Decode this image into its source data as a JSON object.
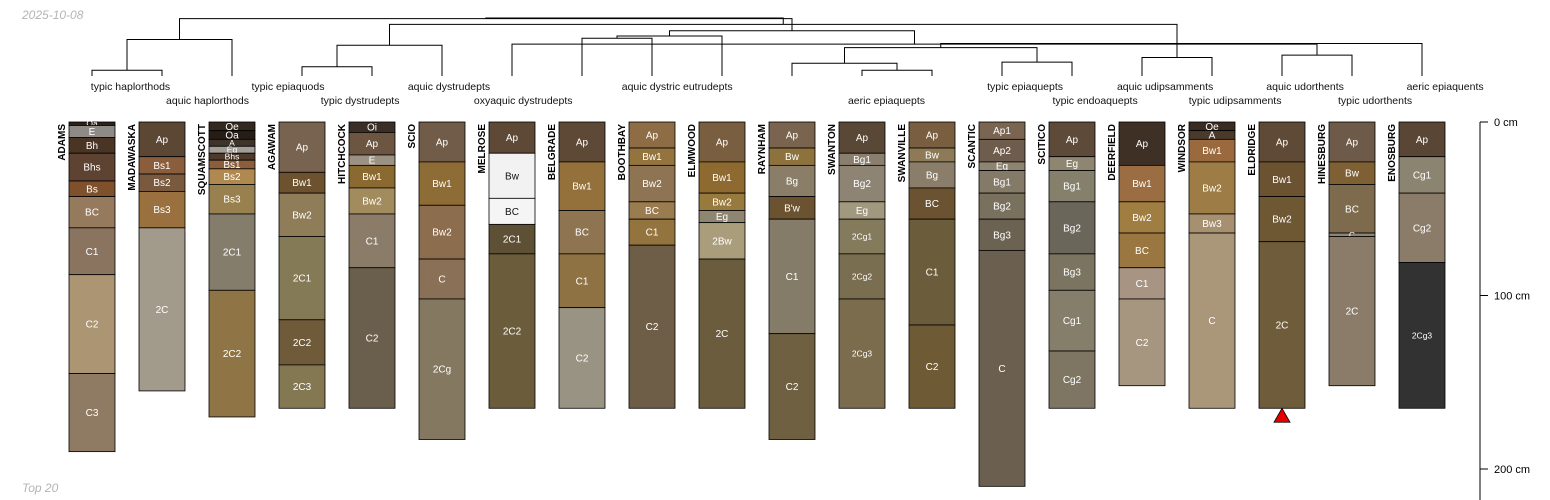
{
  "date": "2025-10-08",
  "footer": "Top 20",
  "depth_axis": {
    "unit": "cm",
    "max_depth": 210,
    "ticks": [
      {
        "value": 0,
        "label": "0 cm"
      },
      {
        "value": 100,
        "label": "100 cm"
      },
      {
        "value": 200,
        "label": "200 cm"
      }
    ]
  },
  "dendrogram": {
    "leaves": [
      "ADAMS",
      "MADAWASKA",
      "SQUAMSCOTT",
      "AGAWAM",
      "HITCHCOCK",
      "SCIO",
      "MELROSE",
      "BELGRADE",
      "BOOTHBAY",
      "ELMWOOD",
      "RAYNHAM",
      "SWANTON",
      "SWANVILLE",
      "SCANTIC",
      "SCITICO",
      "DEERFIELD",
      "WINDSOR",
      "ELDRIDGE",
      "HINESBURG",
      "ENOSBURG"
    ],
    "merges": [
      {
        "left": 0,
        "right": 1,
        "height": 0.1
      },
      {
        "left": 11,
        "right": 12,
        "height": 0.1
      },
      {
        "left": 3,
        "right": 4,
        "height": 0.16
      },
      {
        "left": 10,
        "right": 21,
        "height": 0.22
      },
      {
        "left": 13,
        "right": 14,
        "height": 0.24
      },
      {
        "left": 15,
        "right": 16,
        "height": 0.32
      },
      {
        "left": 17,
        "right": 18,
        "height": 0.36
      },
      {
        "left": 23,
        "right": 24,
        "height": 0.49
      },
      {
        "left": 22,
        "right": 5,
        "height": 0.53
      },
      {
        "left": 26,
        "right": 6,
        "height": 0.55
      },
      {
        "left": 27,
        "right": 19,
        "height": 0.56
      },
      {
        "left": 20,
        "right": 2,
        "height": 0.63
      },
      {
        "left": 7,
        "right": 8,
        "height": 0.65
      },
      {
        "left": 32,
        "right": 9,
        "height": 0.69
      },
      {
        "left": 29,
        "right": 33,
        "height": 0.78
      },
      {
        "left": 28,
        "right": 25,
        "height": 0.89
      },
      {
        "left": 31,
        "right": 34,
        "height": 0.99
      },
      {
        "left": 36,
        "right": 35,
        "height": 1.0
      }
    ]
  },
  "taxa": [
    {
      "text": "typic haplorthods",
      "row": 0,
      "pos": 0.55
    },
    {
      "text": "aquic haplorthods",
      "row": 1,
      "pos": 1.65
    },
    {
      "text": "typic epiaquods",
      "row": 0,
      "pos": 2.8
    },
    {
      "text": "typic dystrudepts",
      "row": 1,
      "pos": 3.83
    },
    {
      "text": "aquic dystrudepts",
      "row": 0,
      "pos": 5.1
    },
    {
      "text": "oxyaquic dystrudepts",
      "row": 1,
      "pos": 6.16
    },
    {
      "text": "aquic dystric eutrudepts",
      "row": 0,
      "pos": 8.36
    },
    {
      "text": "aeric epiaquepts",
      "row": 1,
      "pos": 11.35
    },
    {
      "text": "typic epiaquepts",
      "row": 0,
      "pos": 13.33
    },
    {
      "text": "typic endoaquepts",
      "row": 1,
      "pos": 14.33
    },
    {
      "text": "aquic udipsamments",
      "row": 0,
      "pos": 15.33
    },
    {
      "text": "typic udipsamments",
      "row": 1,
      "pos": 16.33
    },
    {
      "text": "aquic udorthents",
      "row": 0,
      "pos": 17.33
    },
    {
      "text": "typic udorthents",
      "row": 1,
      "pos": 18.33
    },
    {
      "text": "aeric epiaquents",
      "row": 0,
      "pos": 19.33
    }
  ],
  "profiles": [
    {
      "name": "ADAMS",
      "horizons": [
        {
          "name": "Oa",
          "top": 0,
          "bottom": 2,
          "color": "#2c2118"
        },
        {
          "name": "E",
          "top": 2,
          "bottom": 9,
          "color": "#8e8a86"
        },
        {
          "name": "Bh",
          "top": 9,
          "bottom": 18,
          "color": "#4a3424"
        },
        {
          "name": "Bhs",
          "top": 18,
          "bottom": 34,
          "color": "#5e4232"
        },
        {
          "name": "Bs",
          "top": 34,
          "bottom": 43,
          "color": "#7e502c"
        },
        {
          "name": "BC",
          "top": 43,
          "bottom": 61,
          "color": "#957a5e"
        },
        {
          "name": "C1",
          "top": 61,
          "bottom": 88,
          "color": "#8a7460"
        },
        {
          "name": "C2",
          "top": 88,
          "bottom": 145,
          "color": "#ab9573"
        },
        {
          "name": "C3",
          "top": 145,
          "bottom": 190,
          "color": "#8f7b64"
        }
      ]
    },
    {
      "name": "MADAWASKA",
      "horizons": [
        {
          "name": "Ap",
          "top": 0,
          "bottom": 20,
          "color": "#5c4634"
        },
        {
          "name": "Bs1",
          "top": 20,
          "bottom": 30,
          "color": "#8a5d3d"
        },
        {
          "name": "Bs2",
          "top": 30,
          "bottom": 40,
          "color": "#7a5a3f"
        },
        {
          "name": "Bs3",
          "top": 40,
          "bottom": 61,
          "color": "#9a713e"
        },
        {
          "name": "2C",
          "top": 61,
          "bottom": 155,
          "color": "#a29a8a"
        }
      ]
    },
    {
      "name": "SQUAMSCOTT",
      "horizons": [
        {
          "name": "Oe",
          "top": 0,
          "bottom": 5,
          "color": "#34291f"
        },
        {
          "name": "Oa",
          "top": 5,
          "bottom": 10,
          "color": "#261d16"
        },
        {
          "name": "A",
          "top": 10,
          "bottom": 14,
          "color": "#3e3429"
        },
        {
          "name": "Eg",
          "top": 14,
          "bottom": 18,
          "color": "#a39d97"
        },
        {
          "name": "Bhs",
          "top": 18,
          "bottom": 22,
          "color": "#4e3a2a"
        },
        {
          "name": "Bs1",
          "top": 22,
          "bottom": 27,
          "color": "#8b5f3c"
        },
        {
          "name": "Bs2",
          "top": 27,
          "bottom": 36,
          "color": "#b08950"
        },
        {
          "name": "Bs3",
          "top": 36,
          "bottom": 53,
          "color": "#98804f"
        },
        {
          "name": "2C1",
          "top": 53,
          "bottom": 97,
          "color": "#857d6c"
        },
        {
          "name": "2C2",
          "top": 97,
          "bottom": 170,
          "color": "#8f7446"
        }
      ]
    },
    {
      "name": "AGAWAM",
      "horizons": [
        {
          "name": "Ap",
          "top": 0,
          "bottom": 29,
          "color": "#776350"
        },
        {
          "name": "Bw1",
          "top": 29,
          "bottom": 41,
          "color": "#6d5230"
        },
        {
          "name": "Bw2",
          "top": 41,
          "bottom": 66,
          "color": "#8e7d58"
        },
        {
          "name": "2C1",
          "top": 66,
          "bottom": 114,
          "color": "#847a55"
        },
        {
          "name": "2C2",
          "top": 114,
          "bottom": 140,
          "color": "#6f5a3a"
        },
        {
          "name": "2C3",
          "top": 140,
          "bottom": 165,
          "color": "#847853"
        }
      ]
    },
    {
      "name": "HITCHCOCK",
      "horizons": [
        {
          "name": "Oi",
          "top": 0,
          "bottom": 6,
          "color": "#3a2e26"
        },
        {
          "name": "Ap",
          "top": 6,
          "bottom": 19,
          "color": "#6c5642"
        },
        {
          "name": "E",
          "top": 19,
          "bottom": 25,
          "color": "#9c9283"
        },
        {
          "name": "Bw1",
          "top": 25,
          "bottom": 38,
          "color": "#8a6a30"
        },
        {
          "name": "Bw2",
          "top": 38,
          "bottom": 53,
          "color": "#a28c5e"
        },
        {
          "name": "C1",
          "top": 53,
          "bottom": 84,
          "color": "#8a7c68"
        },
        {
          "name": "C2",
          "top": 84,
          "bottom": 165,
          "color": "#6a5f4c"
        }
      ]
    },
    {
      "name": "SCIO",
      "horizons": [
        {
          "name": "Ap",
          "top": 0,
          "bottom": 23,
          "color": "#715c4a"
        },
        {
          "name": "Bw1",
          "top": 23,
          "bottom": 48,
          "color": "#8e6c35"
        },
        {
          "name": "Bw2",
          "top": 48,
          "bottom": 79,
          "color": "#8c6e4e"
        },
        {
          "name": "C",
          "top": 79,
          "bottom": 102,
          "color": "#8a7056"
        },
        {
          "name": "2Cg",
          "top": 102,
          "bottom": 183,
          "color": "#847860"
        }
      ]
    },
    {
      "name": "MELROSE",
      "horizons": [
        {
          "name": "Ap",
          "top": 0,
          "bottom": 18,
          "color": "#5e4836"
        },
        {
          "name": "Bw",
          "top": 18,
          "bottom": 44,
          "color": "#f2f2f2"
        },
        {
          "name": "BC",
          "top": 44,
          "bottom": 59,
          "color": "#f5f5f5"
        },
        {
          "name": "2C1",
          "top": 59,
          "bottom": 76,
          "color": "#5e5034"
        },
        {
          "name": "2C2",
          "top": 76,
          "bottom": 165,
          "color": "#6b5c3c"
        }
      ]
    },
    {
      "name": "BELGRADE",
      "horizons": [
        {
          "name": "Ap",
          "top": 0,
          "bottom": 23,
          "color": "#5e4836"
        },
        {
          "name": "Bw1",
          "top": 23,
          "bottom": 51,
          "color": "#94703a"
        },
        {
          "name": "BC",
          "top": 51,
          "bottom": 76,
          "color": "#8e7450"
        },
        {
          "name": "C1",
          "top": 76,
          "bottom": 107,
          "color": "#8e7244"
        },
        {
          "name": "C2",
          "top": 107,
          "bottom": 165,
          "color": "#999383"
        }
      ]
    },
    {
      "name": "BOOTHBAY",
      "horizons": [
        {
          "name": "Ap",
          "top": 0,
          "bottom": 15,
          "color": "#8e6c45"
        },
        {
          "name": "Bw1",
          "top": 15,
          "bottom": 25,
          "color": "#94743e"
        },
        {
          "name": "Bw2",
          "top": 25,
          "bottom": 46,
          "color": "#8e7453"
        },
        {
          "name": "BC",
          "top": 46,
          "bottom": 56,
          "color": "#9a7c50"
        },
        {
          "name": "C1",
          "top": 56,
          "bottom": 71,
          "color": "#94743e"
        },
        {
          "name": "C2",
          "top": 71,
          "bottom": 165,
          "color": "#6e5e48"
        }
      ]
    },
    {
      "name": "ELMWOOD",
      "horizons": [
        {
          "name": "Ap",
          "top": 0,
          "bottom": 23,
          "color": "#7a5e40"
        },
        {
          "name": "Bw1",
          "top": 23,
          "bottom": 41,
          "color": "#8e6a30"
        },
        {
          "name": "Bw2",
          "top": 41,
          "bottom": 51,
          "color": "#997a3e"
        },
        {
          "name": "Eg",
          "top": 51,
          "bottom": 58,
          "color": "#8e8670"
        },
        {
          "name": "2Bw",
          "top": 58,
          "bottom": 79,
          "color": "#a99d7c"
        },
        {
          "name": "2C",
          "top": 79,
          "bottom": 165,
          "color": "#6b5c3e"
        }
      ]
    },
    {
      "name": "RAYNHAM",
      "horizons": [
        {
          "name": "Ap",
          "top": 0,
          "bottom": 15,
          "color": "#7a644f"
        },
        {
          "name": "Bw",
          "top": 15,
          "bottom": 25,
          "color": "#8e723e"
        },
        {
          "name": "Bg",
          "top": 25,
          "bottom": 43,
          "color": "#8a7e68"
        },
        {
          "name": "B'w",
          "top": 43,
          "bottom": 56,
          "color": "#6b5230"
        },
        {
          "name": "C1",
          "top": 56,
          "bottom": 122,
          "color": "#847c68"
        },
        {
          "name": "C2",
          "top": 122,
          "bottom": 183,
          "color": "#6e6040"
        }
      ]
    },
    {
      "name": "SWANTON",
      "horizons": [
        {
          "name": "Ap",
          "top": 0,
          "bottom": 18,
          "color": "#5a4836"
        },
        {
          "name": "Bg1",
          "top": 18,
          "bottom": 25,
          "color": "#8a7e6e"
        },
        {
          "name": "Bg2",
          "top": 25,
          "bottom": 46,
          "color": "#8e8474"
        },
        {
          "name": "Eg",
          "top": 46,
          "bottom": 56,
          "color": "#a19880"
        },
        {
          "name": "2Cg1",
          "top": 56,
          "bottom": 76,
          "color": "#847a5c"
        },
        {
          "name": "2Cg2",
          "top": 76,
          "bottom": 102,
          "color": "#7a6e50"
        },
        {
          "name": "2Cg3",
          "top": 102,
          "bottom": 165,
          "color": "#7a6c4c"
        }
      ]
    },
    {
      "name": "SWANVILLE",
      "horizons": [
        {
          "name": "Ap",
          "top": 0,
          "bottom": 15,
          "color": "#7a5e40"
        },
        {
          "name": "Bw",
          "top": 15,
          "bottom": 23,
          "color": "#8e7a56"
        },
        {
          "name": "Bg",
          "top": 23,
          "bottom": 38,
          "color": "#8a7e6a"
        },
        {
          "name": "BC",
          "top": 38,
          "bottom": 56,
          "color": "#6b5230"
        },
        {
          "name": "C1",
          "top": 56,
          "bottom": 117,
          "color": "#6b5c3c"
        },
        {
          "name": "C2",
          "top": 117,
          "bottom": 165,
          "color": "#6e5a34"
        }
      ]
    },
    {
      "name": "SCANTIC",
      "horizons": [
        {
          "name": "Ap1",
          "top": 0,
          "bottom": 10,
          "color": "#7a6452"
        },
        {
          "name": "Ap2",
          "top": 10,
          "bottom": 23,
          "color": "#6e5c4c"
        },
        {
          "name": "Eg",
          "top": 23,
          "bottom": 28,
          "color": "#8e8472"
        },
        {
          "name": "Bg1",
          "top": 28,
          "bottom": 41,
          "color": "#847a68"
        },
        {
          "name": "Bg2",
          "top": 41,
          "bottom": 56,
          "color": "#7a705e"
        },
        {
          "name": "Bg3",
          "top": 56,
          "bottom": 74,
          "color": "#6b6252"
        },
        {
          "name": "C",
          "top": 74,
          "bottom": 210,
          "color": "#6b6050"
        }
      ]
    },
    {
      "name": "SCITICO",
      "horizons": [
        {
          "name": "Ap",
          "top": 0,
          "bottom": 20,
          "color": "#5e4a38"
        },
        {
          "name": "Eg",
          "top": 20,
          "bottom": 28,
          "color": "#8e8670"
        },
        {
          "name": "Bg1",
          "top": 28,
          "bottom": 46,
          "color": "#84806c"
        },
        {
          "name": "Bg2",
          "top": 46,
          "bottom": 76,
          "color": "#6b665a"
        },
        {
          "name": "Bg3",
          "top": 76,
          "bottom": 97,
          "color": "#7a7460"
        },
        {
          "name": "Cg1",
          "top": 97,
          "bottom": 132,
          "color": "#847e6a"
        },
        {
          "name": "Cg2",
          "top": 132,
          "bottom": 165,
          "color": "#7e7662"
        }
      ]
    },
    {
      "name": "DEERFIELD",
      "horizons": [
        {
          "name": "Ap",
          "top": 0,
          "bottom": 25,
          "color": "#3e3024"
        },
        {
          "name": "Bw1",
          "top": 25,
          "bottom": 46,
          "color": "#9a6e42"
        },
        {
          "name": "Bw2",
          "top": 46,
          "bottom": 64,
          "color": "#a07e42"
        },
        {
          "name": "BC",
          "top": 64,
          "bottom": 84,
          "color": "#9a7640"
        },
        {
          "name": "C1",
          "top": 84,
          "bottom": 102,
          "color": "#a89482"
        },
        {
          "name": "C2",
          "top": 102,
          "bottom": 152,
          "color": "#a69680"
        }
      ]
    },
    {
      "name": "WINDSOR",
      "horizons": [
        {
          "name": "Oe",
          "top": 0,
          "bottom": 5,
          "color": "#3a2c20"
        },
        {
          "name": "A",
          "top": 5,
          "bottom": 10,
          "color": "#4a3a2c"
        },
        {
          "name": "Bw1",
          "top": 10,
          "bottom": 23,
          "color": "#9a6a3e"
        },
        {
          "name": "Bw2",
          "top": 23,
          "bottom": 53,
          "color": "#9e7c46"
        },
        {
          "name": "Bw3",
          "top": 53,
          "bottom": 64,
          "color": "#a69070"
        },
        {
          "name": "C",
          "top": 64,
          "bottom": 165,
          "color": "#aa9678"
        }
      ]
    },
    {
      "name": "ELDRIDGE",
      "horizons": [
        {
          "name": "Ap",
          "top": 0,
          "bottom": 23,
          "color": "#5e4a36"
        },
        {
          "name": "Bw1",
          "top": 23,
          "bottom": 43,
          "color": "#6b5230"
        },
        {
          "name": "Bw2",
          "top": 43,
          "bottom": 69,
          "color": "#6e5834"
        },
        {
          "name": "2C",
          "top": 69,
          "bottom": 165,
          "color": "#6e5c3a"
        }
      ]
    },
    {
      "name": "HINESBURG",
      "horizons": [
        {
          "name": "Ap",
          "top": 0,
          "bottom": 23,
          "color": "#6e5a48"
        },
        {
          "name": "Bw",
          "top": 23,
          "bottom": 36,
          "color": "#7e6034"
        },
        {
          "name": "BC",
          "top": 36,
          "bottom": 64,
          "color": "#7e6a4c"
        },
        {
          "name": "C",
          "top": 64,
          "bottom": 66,
          "color": "#8e8472"
        },
        {
          "name": "2C",
          "top": 66,
          "bottom": 152,
          "color": "#8a7c68"
        }
      ]
    },
    {
      "name": "ENOSBURG",
      "horizons": [
        {
          "name": "Ap",
          "top": 0,
          "bottom": 20,
          "color": "#5a4634"
        },
        {
          "name": "Cg1",
          "top": 20,
          "bottom": 41,
          "color": "#8a8470"
        },
        {
          "name": "Cg2",
          "top": 41,
          "bottom": 81,
          "color": "#8a7c68"
        },
        {
          "name": "2Cg3",
          "top": 81,
          "bottom": 165,
          "color": "#323232"
        }
      ]
    }
  ],
  "markers": [
    {
      "profile": "ELDRIDGE",
      "depth": 165,
      "shape": "triangle",
      "color": "#e60000"
    }
  ]
}
